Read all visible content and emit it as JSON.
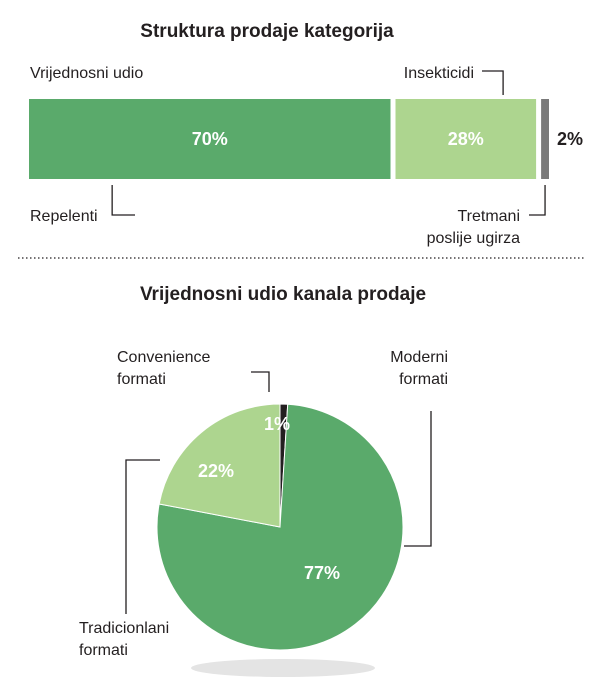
{
  "colors": {
    "dark_green": "#5aaa6b",
    "light_green": "#add58f",
    "gray": "#7a7a7a",
    "black": "#231f20",
    "shadow": "#e4e4e4"
  },
  "chart_data": [
    {
      "type": "bar",
      "orientation": "horizontal-stacked",
      "title": "Struktura prodaje kategorija",
      "subtitle": "Vrijednosni udio",
      "categories": [
        "Repelenti",
        "Insekticidi",
        "Tretmani poslije ugirza"
      ],
      "category_label_lines": [
        [
          "Repelenti"
        ],
        [
          "Insekticidi"
        ],
        [
          "Tretmani",
          "poslije ugirza"
        ]
      ],
      "values": [
        70,
        28,
        2
      ],
      "value_labels": [
        "70%",
        "28%",
        "2%"
      ],
      "colors": [
        "#5aaa6b",
        "#add58f",
        "#7a7a7a"
      ]
    },
    {
      "type": "pie",
      "title": "Vrijednosni udio kanala prodaje",
      "categories": [
        "Convenience formati",
        "Moderni formati",
        "Tradicionlani formati"
      ],
      "category_label_lines": [
        [
          "Convenience",
          "formati"
        ],
        [
          "Moderni",
          "formati"
        ],
        [
          "Tradicionlani",
          "formati"
        ]
      ],
      "values": [
        1,
        77,
        22
      ],
      "value_labels": [
        "1%",
        "77%",
        "22%"
      ],
      "colors": [
        "#231f20",
        "#5aaa6b",
        "#add58f"
      ]
    }
  ]
}
